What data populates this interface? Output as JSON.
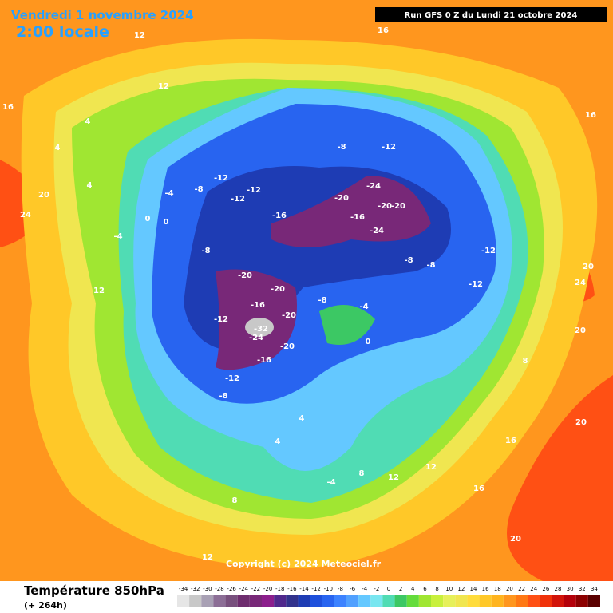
{
  "header": {
    "date": "Vendredi 1 novembre 2024",
    "time": "2:00 locale",
    "run": "Run GFS 0 Z du Lundi 21 octobre 2024"
  },
  "copyright": "Copyright (c) 2024 Meteociel.fr",
  "footer": {
    "title": "Température 850hPa",
    "lead": "(+ 264h)"
  },
  "scale": {
    "values": [
      -34,
      -32,
      -30,
      -28,
      -26,
      -24,
      -22,
      -20,
      -18,
      -16,
      -14,
      -12,
      -10,
      -8,
      -6,
      -4,
      -2,
      0,
      2,
      4,
      6,
      8,
      10,
      12,
      14,
      16,
      18,
      20,
      22,
      24,
      26,
      28,
      30,
      32,
      34
    ],
    "colors": [
      "#e6e6e6",
      "#c8c8c8",
      "#a8a0b4",
      "#8c6e96",
      "#78507d",
      "#6e2d6e",
      "#782878",
      "#8c1e8c",
      "#50288c",
      "#32328c",
      "#1e3cb4",
      "#1e50dc",
      "#2864f0",
      "#3c82ff",
      "#50a0ff",
      "#64c8ff",
      "#78e6f0",
      "#50dcb4",
      "#3cc864",
      "#64dc3c",
      "#a0e632",
      "#c8f03c",
      "#e6f05a",
      "#f0e650",
      "#ffdc3c",
      "#ffc828",
      "#ffb41e",
      "#ff961e",
      "#ff7814",
      "#ff5014",
      "#f0320a",
      "#d2140a",
      "#b4000a",
      "#8c0000",
      "#5a0000"
    ]
  },
  "map_labels": [
    12,
    16,
    16,
    12,
    16,
    4,
    4,
    4,
    0,
    0,
    -4,
    -8,
    -12,
    -12,
    -16,
    -12,
    -8,
    -8,
    -12,
    -4,
    -20,
    -24,
    -20,
    -24,
    -20,
    -16,
    -8,
    -12,
    -12,
    -8,
    -8,
    -4,
    -20,
    -20,
    -16,
    -12,
    -20,
    -32,
    -24,
    -20,
    -16,
    -12,
    -8,
    -4,
    0,
    4,
    8,
    12,
    16,
    20,
    20,
    24,
    24,
    20,
    20,
    12,
    8,
    -4,
    4,
    12,
    16,
    20,
    12,
    8
  ]
}
